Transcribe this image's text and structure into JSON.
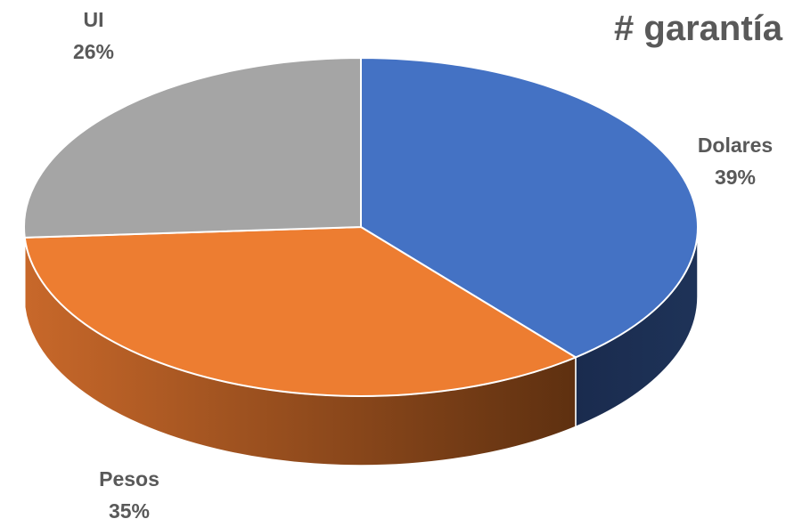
{
  "chart_data": {
    "type": "pie",
    "title": "# garantía",
    "slices": [
      {
        "label": "Dolares",
        "value": 39,
        "percent_label": "39%",
        "color": "#4472C4",
        "side_color": "#1B2D4F"
      },
      {
        "label": "Pesos",
        "value": 35,
        "percent_label": "35%",
        "color": "#ED7D31",
        "side_color": "#A4521D"
      },
      {
        "label": "UI",
        "value": 26,
        "percent_label": "26%",
        "color": "#A5A5A5",
        "side_color": "#6E6E6E"
      }
    ],
    "start_direction": "top",
    "style": "3d"
  }
}
